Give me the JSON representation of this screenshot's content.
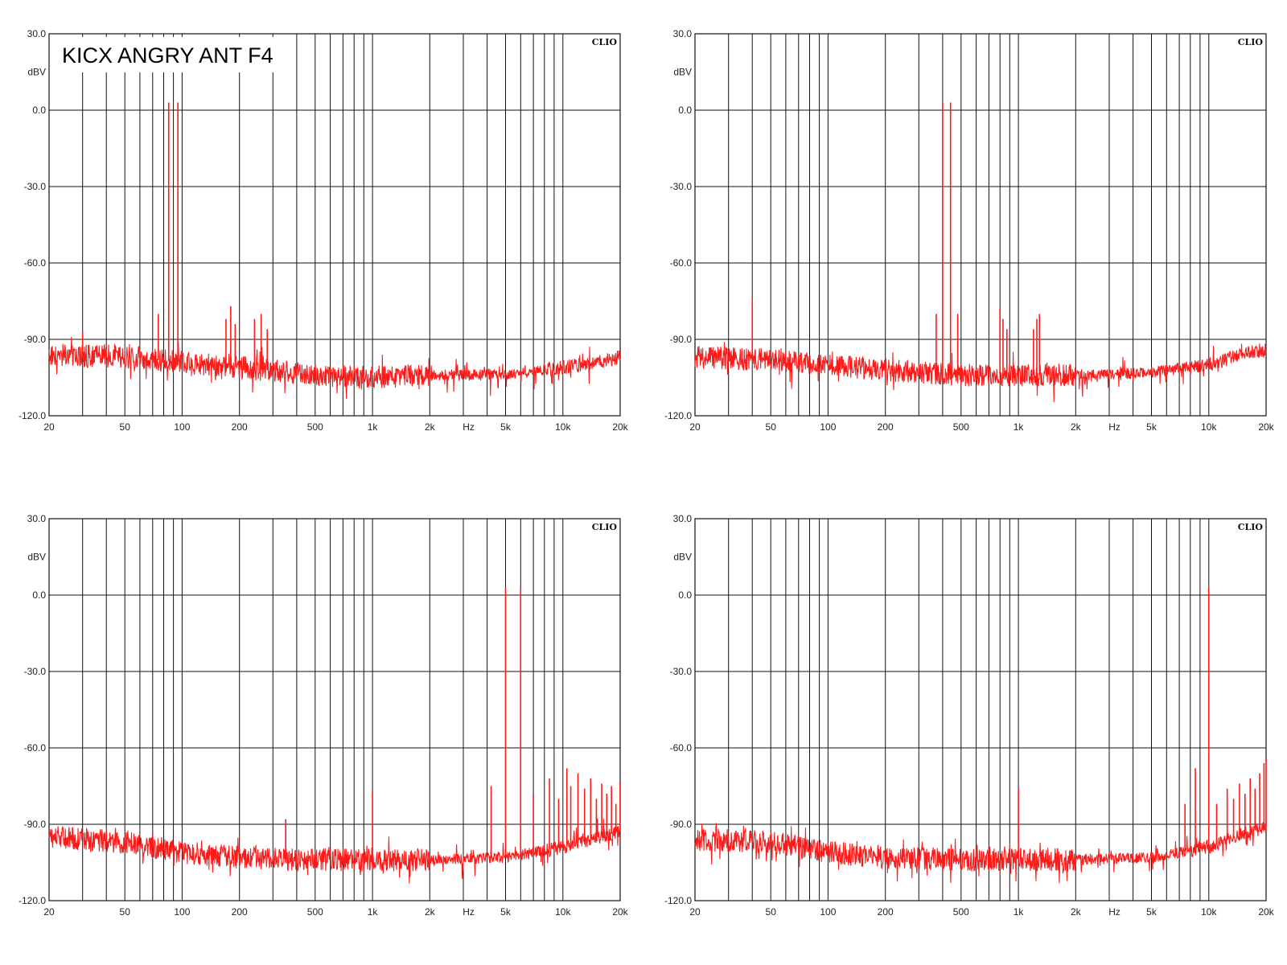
{
  "title": "KICX ANGRY ANT F4",
  "brand": "CLIO",
  "colors": {
    "trace": "#ff1a1a",
    "grid": "#111111",
    "background": "#ffffff"
  },
  "axes": {
    "x_scale": "log",
    "xlim": [
      20,
      20000
    ],
    "ylim": [
      -120,
      30
    ],
    "x_unit_label": "Hz",
    "y_unit_label": "dBV",
    "y_ticks": [
      30,
      0,
      -30,
      -60,
      -90,
      -120
    ],
    "y_tick_labels": [
      "30.0",
      "0.0",
      "-30.0",
      "-60.0",
      "-90.0",
      "-120.0"
    ],
    "x_tick_labels": [
      {
        "v": 20,
        "t": "20"
      },
      {
        "v": 50,
        "t": "50"
      },
      {
        "v": 100,
        "t": "100"
      },
      {
        "v": 200,
        "t": "200"
      },
      {
        "v": 500,
        "t": "500"
      },
      {
        "v": 1000,
        "t": "1k"
      },
      {
        "v": 2000,
        "t": "2k"
      },
      {
        "v": 5000,
        "t": "5k"
      },
      {
        "v": 10000,
        "t": "10k"
      },
      {
        "v": 20000,
        "t": "20k"
      }
    ],
    "x_gridlines": [
      30,
      40,
      50,
      60,
      70,
      80,
      90,
      100,
      200,
      300,
      400,
      500,
      600,
      700,
      800,
      900,
      1000,
      2000,
      3000,
      4000,
      5000,
      6000,
      7000,
      8000,
      9000,
      10000,
      20000
    ],
    "y_gridlines": [
      0,
      -30,
      -60,
      -90
    ]
  },
  "chart_data": [
    {
      "type": "line",
      "position": "top-left",
      "show_title": true,
      "noise_floor": [
        [
          20,
          -96
        ],
        [
          50,
          -97
        ],
        [
          100,
          -99
        ],
        [
          200,
          -101
        ],
        [
          500,
          -104
        ],
        [
          1000,
          -105
        ],
        [
          2000,
          -104
        ],
        [
          5000,
          -104
        ],
        [
          10000,
          -101
        ],
        [
          15000,
          -99
        ],
        [
          20000,
          -97
        ]
      ],
      "peaks": [
        [
          30,
          -87
        ],
        [
          75,
          -80
        ],
        [
          85,
          3
        ],
        [
          95,
          3
        ],
        [
          170,
          -82
        ],
        [
          180,
          -77
        ],
        [
          190,
          -84
        ],
        [
          240,
          -82
        ],
        [
          260,
          -80
        ],
        [
          280,
          -86
        ]
      ]
    },
    {
      "type": "line",
      "position": "top-right",
      "show_title": false,
      "noise_floor": [
        [
          20,
          -97
        ],
        [
          50,
          -98
        ],
        [
          100,
          -100
        ],
        [
          200,
          -102
        ],
        [
          500,
          -104
        ],
        [
          1000,
          -104
        ],
        [
          2000,
          -104
        ],
        [
          5000,
          -103
        ],
        [
          10000,
          -100
        ],
        [
          15000,
          -96
        ],
        [
          20000,
          -94
        ]
      ],
      "peaks": [
        [
          40,
          -74
        ],
        [
          370,
          -80
        ],
        [
          400,
          3
        ],
        [
          440,
          3
        ],
        [
          480,
          -80
        ],
        [
          800,
          -78
        ],
        [
          830,
          -82
        ],
        [
          870,
          -86
        ],
        [
          1200,
          -86
        ],
        [
          1250,
          -82
        ],
        [
          1290,
          -80
        ]
      ]
    },
    {
      "type": "line",
      "position": "bottom-left",
      "show_title": false,
      "noise_floor": [
        [
          20,
          -95
        ],
        [
          50,
          -97
        ],
        [
          100,
          -101
        ],
        [
          200,
          -103
        ],
        [
          500,
          -104
        ],
        [
          1000,
          -104
        ],
        [
          2000,
          -104
        ],
        [
          5000,
          -103
        ],
        [
          10000,
          -99
        ],
        [
          15000,
          -95
        ],
        [
          20000,
          -93
        ]
      ],
      "peaks": [
        [
          350,
          -88
        ],
        [
          1000,
          -77
        ],
        [
          4200,
          -75
        ],
        [
          5000,
          3
        ],
        [
          6000,
          3
        ],
        [
          7000,
          -78
        ],
        [
          8500,
          -72
        ],
        [
          9500,
          -80
        ],
        [
          10500,
          -68
        ],
        [
          11000,
          -75
        ],
        [
          12000,
          -70
        ],
        [
          13000,
          -76
        ],
        [
          14000,
          -72
        ],
        [
          15000,
          -80
        ],
        [
          16000,
          -74
        ],
        [
          17000,
          -78
        ],
        [
          18000,
          -75
        ],
        [
          19000,
          -82
        ],
        [
          20000,
          -73
        ]
      ]
    },
    {
      "type": "line",
      "position": "bottom-right",
      "show_title": false,
      "noise_floor": [
        [
          20,
          -96
        ],
        [
          50,
          -97
        ],
        [
          100,
          -101
        ],
        [
          200,
          -103
        ],
        [
          500,
          -104
        ],
        [
          1000,
          -104
        ],
        [
          2000,
          -104
        ],
        [
          5000,
          -103
        ],
        [
          10000,
          -99
        ],
        [
          15000,
          -94
        ],
        [
          20000,
          -91
        ]
      ],
      "peaks": [
        [
          1000,
          -76
        ],
        [
          7500,
          -82
        ],
        [
          8500,
          -68
        ],
        [
          10000,
          3
        ],
        [
          11000,
          -82
        ],
        [
          12500,
          -76
        ],
        [
          13500,
          -80
        ],
        [
          14500,
          -74
        ],
        [
          15500,
          -78
        ],
        [
          16500,
          -72
        ],
        [
          17500,
          -76
        ],
        [
          18500,
          -70
        ],
        [
          19500,
          -66
        ],
        [
          20000,
          -64
        ]
      ]
    }
  ]
}
